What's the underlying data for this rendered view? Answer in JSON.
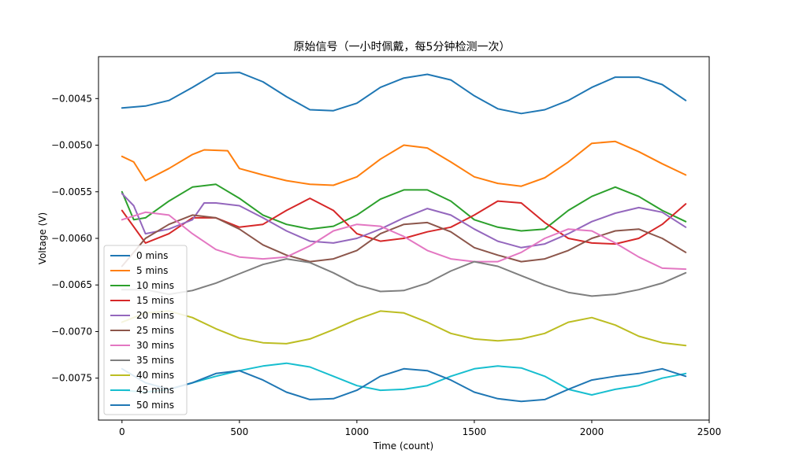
{
  "chart_data": {
    "type": "line",
    "title": "原始信号（一小时佩戴，每5分钟检测一次）",
    "xlabel": "Time (count)",
    "ylabel": "Voltage (V)",
    "xlim": [
      -100,
      2500
    ],
    "ylim": [
      -0.00795,
      -0.00405
    ],
    "xticks": [
      0,
      500,
      1000,
      1500,
      2000,
      2500
    ],
    "xtick_labels": [
      "0",
      "500",
      "1000",
      "1500",
      "2000",
      "2500"
    ],
    "yticks": [
      -0.0045,
      -0.005,
      -0.0055,
      -0.006,
      -0.0065,
      -0.007,
      -0.0075
    ],
    "ytick_labels": [
      "−0.0045",
      "−0.0050",
      "−0.0055",
      "−0.0060",
      "−0.0065",
      "−0.0070",
      "−0.0075"
    ],
    "grid": false,
    "legend_position": "lower-left",
    "series": [
      {
        "name": "0 mins",
        "color": "#1f77b4",
        "x": [
          0,
          100,
          200,
          300,
          400,
          500,
          600,
          700,
          800,
          900,
          1000,
          1100,
          1200,
          1300,
          1400,
          1500,
          1600,
          1700,
          1800,
          1900,
          2000,
          2100,
          2200,
          2300,
          2400
        ],
        "y": [
          -0.0046,
          -0.00458,
          -0.00452,
          -0.00438,
          -0.00423,
          -0.00422,
          -0.00432,
          -0.00448,
          -0.00462,
          -0.00463,
          -0.00455,
          -0.00438,
          -0.00428,
          -0.00424,
          -0.0043,
          -0.00447,
          -0.00461,
          -0.00466,
          -0.00462,
          -0.00452,
          -0.00438,
          -0.00427,
          -0.00427,
          -0.00435,
          -0.00452
        ]
      },
      {
        "name": "5 mins",
        "color": "#ff7f0e",
        "x": [
          0,
          50,
          100,
          200,
          300,
          350,
          450,
          500,
          600,
          700,
          800,
          900,
          1000,
          1100,
          1200,
          1300,
          1400,
          1500,
          1600,
          1700,
          1800,
          1900,
          2000,
          2100,
          2200,
          2300,
          2400
        ],
        "y": [
          -0.00512,
          -0.00518,
          -0.00538,
          -0.00525,
          -0.0051,
          -0.00505,
          -0.00506,
          -0.00525,
          -0.00532,
          -0.00538,
          -0.00542,
          -0.00543,
          -0.00534,
          -0.00515,
          -0.005,
          -0.00503,
          -0.00518,
          -0.00534,
          -0.00541,
          -0.00544,
          -0.00535,
          -0.00518,
          -0.00498,
          -0.00496,
          -0.00507,
          -0.0052,
          -0.00532
        ]
      },
      {
        "name": "10 mins",
        "color": "#2ca02c",
        "x": [
          0,
          50,
          100,
          200,
          300,
          400,
          500,
          600,
          700,
          800,
          900,
          1000,
          1100,
          1200,
          1300,
          1400,
          1500,
          1600,
          1700,
          1800,
          1900,
          2000,
          2100,
          2200,
          2300,
          2400
        ],
        "y": [
          -0.0055,
          -0.0058,
          -0.00578,
          -0.0056,
          -0.00545,
          -0.00542,
          -0.00557,
          -0.00575,
          -0.00585,
          -0.0059,
          -0.00587,
          -0.00575,
          -0.00558,
          -0.00548,
          -0.00548,
          -0.0056,
          -0.0058,
          -0.00588,
          -0.00592,
          -0.0059,
          -0.0057,
          -0.00555,
          -0.00545,
          -0.00555,
          -0.0057,
          -0.00582
        ]
      },
      {
        "name": "15 mins",
        "color": "#d62728",
        "x": [
          0,
          100,
          200,
          300,
          400,
          500,
          600,
          700,
          800,
          900,
          1000,
          1100,
          1200,
          1300,
          1400,
          1500,
          1600,
          1700,
          1800,
          1900,
          2000,
          2100,
          2200,
          2300,
          2400
        ],
        "y": [
          -0.0057,
          -0.00605,
          -0.00595,
          -0.00578,
          -0.00578,
          -0.00588,
          -0.00585,
          -0.0057,
          -0.00557,
          -0.0057,
          -0.00595,
          -0.00603,
          -0.006,
          -0.00593,
          -0.00588,
          -0.00575,
          -0.0056,
          -0.00562,
          -0.00583,
          -0.006,
          -0.00605,
          -0.00606,
          -0.006,
          -0.00585,
          -0.00563
        ]
      },
      {
        "name": "20 mins",
        "color": "#9467bd",
        "x": [
          0,
          50,
          100,
          200,
          300,
          350,
          400,
          500,
          600,
          700,
          800,
          900,
          1000,
          1100,
          1200,
          1300,
          1400,
          1500,
          1600,
          1700,
          1800,
          1900,
          2000,
          2100,
          2200,
          2300,
          2400
        ],
        "y": [
          -0.00552,
          -0.00565,
          -0.00595,
          -0.0059,
          -0.0058,
          -0.00562,
          -0.00562,
          -0.00565,
          -0.00578,
          -0.00592,
          -0.00603,
          -0.00605,
          -0.006,
          -0.0059,
          -0.00578,
          -0.00568,
          -0.00575,
          -0.0059,
          -0.00603,
          -0.0061,
          -0.00606,
          -0.00595,
          -0.00582,
          -0.00573,
          -0.00567,
          -0.00572,
          -0.00588
        ]
      },
      {
        "name": "25 mins",
        "color": "#8c564b",
        "x": [
          0,
          100,
          200,
          300,
          400,
          500,
          600,
          700,
          800,
          900,
          1000,
          1100,
          1200,
          1300,
          1400,
          1500,
          1600,
          1700,
          1800,
          1900,
          2000,
          2100,
          2200,
          2300,
          2400
        ],
        "y": [
          -0.0063,
          -0.006,
          -0.00585,
          -0.00575,
          -0.00578,
          -0.0059,
          -0.00607,
          -0.00618,
          -0.00625,
          -0.00622,
          -0.00613,
          -0.00595,
          -0.00585,
          -0.00583,
          -0.00593,
          -0.0061,
          -0.00618,
          -0.00625,
          -0.00622,
          -0.00613,
          -0.006,
          -0.00592,
          -0.0059,
          -0.006,
          -0.00615
        ]
      },
      {
        "name": "30 mins",
        "color": "#e377c2",
        "x": [
          0,
          100,
          200,
          300,
          400,
          500,
          600,
          700,
          800,
          900,
          1000,
          1100,
          1200,
          1300,
          1400,
          1500,
          1600,
          1700,
          1800,
          1900,
          2000,
          2100,
          2200,
          2300,
          2400
        ],
        "y": [
          -0.0058,
          -0.00572,
          -0.00575,
          -0.00595,
          -0.00612,
          -0.0062,
          -0.00622,
          -0.0062,
          -0.00608,
          -0.00592,
          -0.00585,
          -0.00587,
          -0.00598,
          -0.00613,
          -0.00622,
          -0.00625,
          -0.00625,
          -0.00615,
          -0.006,
          -0.0059,
          -0.00592,
          -0.00605,
          -0.0062,
          -0.00632,
          -0.00633
        ]
      },
      {
        "name": "35 mins",
        "color": "#7f7f7f",
        "x": [
          0,
          100,
          200,
          300,
          400,
          500,
          600,
          700,
          800,
          900,
          1000,
          1100,
          1200,
          1300,
          1400,
          1500,
          1600,
          1700,
          1800,
          1900,
          2000,
          2100,
          2200,
          2300,
          2400
        ],
        "y": [
          -0.00655,
          -0.00655,
          -0.0066,
          -0.00656,
          -0.00648,
          -0.00638,
          -0.00628,
          -0.00622,
          -0.00626,
          -0.00637,
          -0.0065,
          -0.00657,
          -0.00656,
          -0.00648,
          -0.00635,
          -0.00625,
          -0.0063,
          -0.0064,
          -0.0065,
          -0.00658,
          -0.00662,
          -0.0066,
          -0.00655,
          -0.00648,
          -0.00637
        ]
      },
      {
        "name": "40 mins",
        "color": "#bcbd22",
        "x": [
          0,
          100,
          200,
          300,
          400,
          500,
          600,
          700,
          800,
          900,
          1000,
          1100,
          1200,
          1300,
          1400,
          1500,
          1600,
          1700,
          1800,
          1900,
          2000,
          2100,
          2200,
          2300,
          2400
        ],
        "y": [
          -0.0069,
          -0.0068,
          -0.00678,
          -0.00685,
          -0.00697,
          -0.00707,
          -0.00712,
          -0.00713,
          -0.00708,
          -0.00698,
          -0.00687,
          -0.00678,
          -0.0068,
          -0.0069,
          -0.00702,
          -0.00708,
          -0.0071,
          -0.00708,
          -0.00702,
          -0.0069,
          -0.00685,
          -0.00693,
          -0.00705,
          -0.00712,
          -0.00715
        ]
      },
      {
        "name": "45 mins",
        "color": "#17becf",
        "x": [
          0,
          100,
          200,
          300,
          400,
          500,
          600,
          700,
          800,
          900,
          1000,
          1100,
          1200,
          1300,
          1400,
          1500,
          1600,
          1700,
          1800,
          1900,
          2000,
          2100,
          2200,
          2300,
          2400
        ],
        "y": [
          -0.00763,
          -0.00765,
          -0.00762,
          -0.00755,
          -0.00748,
          -0.00742,
          -0.00737,
          -0.00734,
          -0.00738,
          -0.00748,
          -0.00758,
          -0.00763,
          -0.00762,
          -0.00758,
          -0.00748,
          -0.0074,
          -0.00737,
          -0.00739,
          -0.00748,
          -0.00762,
          -0.00768,
          -0.00762,
          -0.00758,
          -0.0075,
          -0.00745
        ]
      },
      {
        "name": "50 mins",
        "color": "#1f77b4",
        "x": [
          0,
          100,
          200,
          300,
          400,
          500,
          600,
          700,
          800,
          900,
          1000,
          1100,
          1200,
          1300,
          1400,
          1500,
          1600,
          1700,
          1800,
          1900,
          2000,
          2100,
          2200,
          2300,
          2400
        ],
        "y": [
          -0.0074,
          -0.00755,
          -0.00762,
          -0.00755,
          -0.00745,
          -0.00742,
          -0.00752,
          -0.00765,
          -0.00773,
          -0.00772,
          -0.00763,
          -0.00748,
          -0.0074,
          -0.00742,
          -0.00752,
          -0.00765,
          -0.00772,
          -0.00775,
          -0.00773,
          -0.00762,
          -0.00752,
          -0.00748,
          -0.00745,
          -0.0074,
          -0.00748
        ]
      }
    ]
  }
}
